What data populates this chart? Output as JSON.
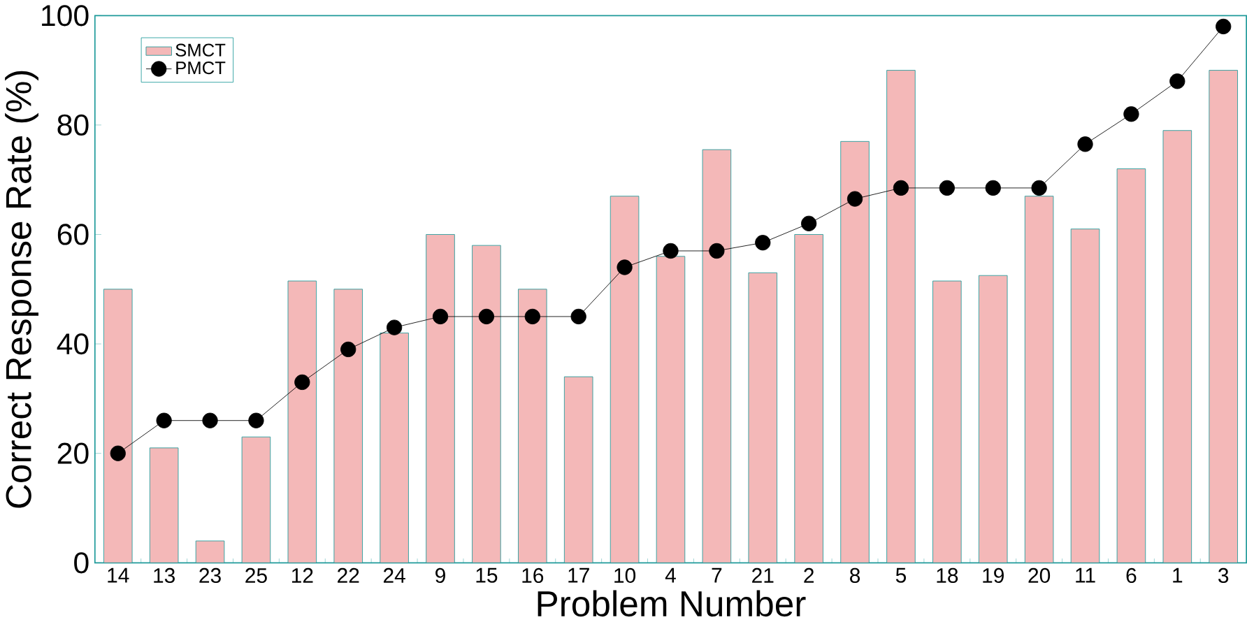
{
  "chart_data": {
    "type": "bar",
    "xlabel": "Problem Number",
    "ylabel": "Correct Response Rate (%)",
    "categories": [
      "14",
      "13",
      "23",
      "25",
      "12",
      "22",
      "24",
      "9",
      "15",
      "16",
      "17",
      "10",
      "4",
      "7",
      "21",
      "2",
      "8",
      "5",
      "18",
      "19",
      "20",
      "11",
      "6",
      "1",
      "3"
    ],
    "series": [
      {
        "name": "SMCT",
        "color": "#f4b8b8",
        "values": [
          50,
          21,
          4,
          23,
          51.5,
          50,
          42,
          60,
          58,
          50,
          34,
          67,
          56,
          75.5,
          53,
          60,
          77,
          90,
          51.5,
          52.5,
          67,
          61,
          72,
          79,
          90
        ]
      },
      {
        "name": "PMCT",
        "type": "line",
        "color": "#000000",
        "marker": "circle",
        "values": [
          20,
          26,
          26,
          26,
          33,
          39,
          43,
          45,
          45,
          45,
          45,
          54,
          57,
          57,
          58.5,
          62,
          66.5,
          68.5,
          68.5,
          68.5,
          68.5,
          76.5,
          82,
          88,
          98
        ]
      }
    ],
    "ylim": [
      0,
      100
    ],
    "yticks": [
      0,
      20,
      40,
      60,
      80,
      100
    ],
    "legend": "top left",
    "grid": false
  }
}
